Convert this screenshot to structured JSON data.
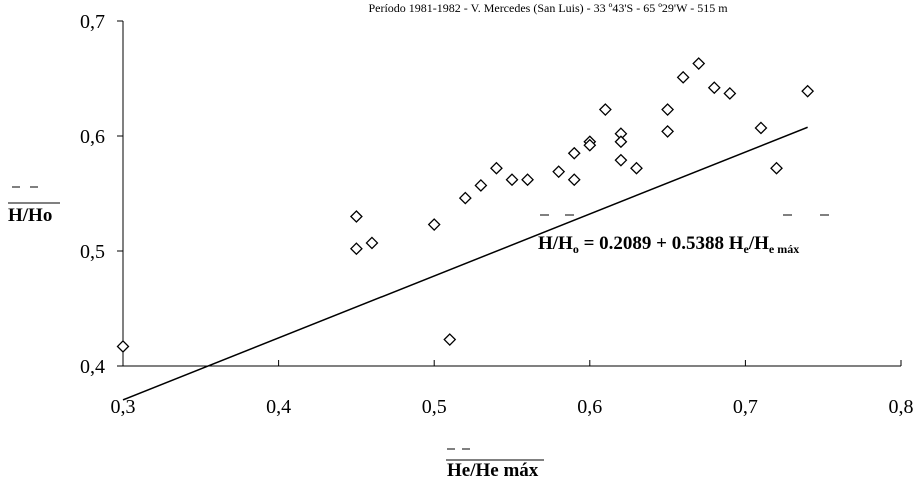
{
  "chart_data": {
    "type": "scatter",
    "subtitle": "Período 1981-1982 - V. Mercedes (San Luis) - 33      º43'S - 65  º29'W - 515 m",
    "xlabel": "He/He máx",
    "ylabel": "H/Ho",
    "xlim": [
      0.3,
      0.8
    ],
    "ylim": [
      0.4,
      0.7
    ],
    "x_ticks": [
      "0,3",
      "0,4",
      "0,5",
      "0,6",
      "0,7",
      "0,8"
    ],
    "y_ticks": [
      "0,4",
      "0,5",
      "0,6",
      "0,7"
    ],
    "grid": false,
    "marker": "diamond",
    "points": [
      {
        "x": 0.3,
        "y": 0.417
      },
      {
        "x": 0.45,
        "y": 0.53
      },
      {
        "x": 0.45,
        "y": 0.502
      },
      {
        "x": 0.46,
        "y": 0.507
      },
      {
        "x": 0.5,
        "y": 0.523
      },
      {
        "x": 0.51,
        "y": 0.423
      },
      {
        "x": 0.52,
        "y": 0.546
      },
      {
        "x": 0.53,
        "y": 0.557
      },
      {
        "x": 0.54,
        "y": 0.572
      },
      {
        "x": 0.55,
        "y": 0.562
      },
      {
        "x": 0.56,
        "y": 0.562
      },
      {
        "x": 0.58,
        "y": 0.569
      },
      {
        "x": 0.59,
        "y": 0.585
      },
      {
        "x": 0.59,
        "y": 0.562
      },
      {
        "x": 0.6,
        "y": 0.595
      },
      {
        "x": 0.6,
        "y": 0.592
      },
      {
        "x": 0.61,
        "y": 0.623
      },
      {
        "x": 0.62,
        "y": 0.602
      },
      {
        "x": 0.62,
        "y": 0.595
      },
      {
        "x": 0.62,
        "y": 0.579
      },
      {
        "x": 0.63,
        "y": 0.572
      },
      {
        "x": 0.65,
        "y": 0.623
      },
      {
        "x": 0.65,
        "y": 0.604
      },
      {
        "x": 0.66,
        "y": 0.651
      },
      {
        "x": 0.67,
        "y": 0.663
      },
      {
        "x": 0.68,
        "y": 0.642
      },
      {
        "x": 0.69,
        "y": 0.637
      },
      {
        "x": 0.71,
        "y": 0.607
      },
      {
        "x": 0.72,
        "y": 0.572
      },
      {
        "x": 0.74,
        "y": 0.639
      }
    ],
    "trendline": {
      "intercept": 0.2089,
      "slope": 0.5388,
      "x_range": [
        0.3,
        0.74
      ]
    },
    "equation": {
      "lhs": "H/H",
      "lhs_sub": "o",
      "mid": " = 0.2089 + 0.5388 H",
      "mid_sub": "e",
      "slash": "/H",
      "rhs_sub": "e máx"
    }
  }
}
